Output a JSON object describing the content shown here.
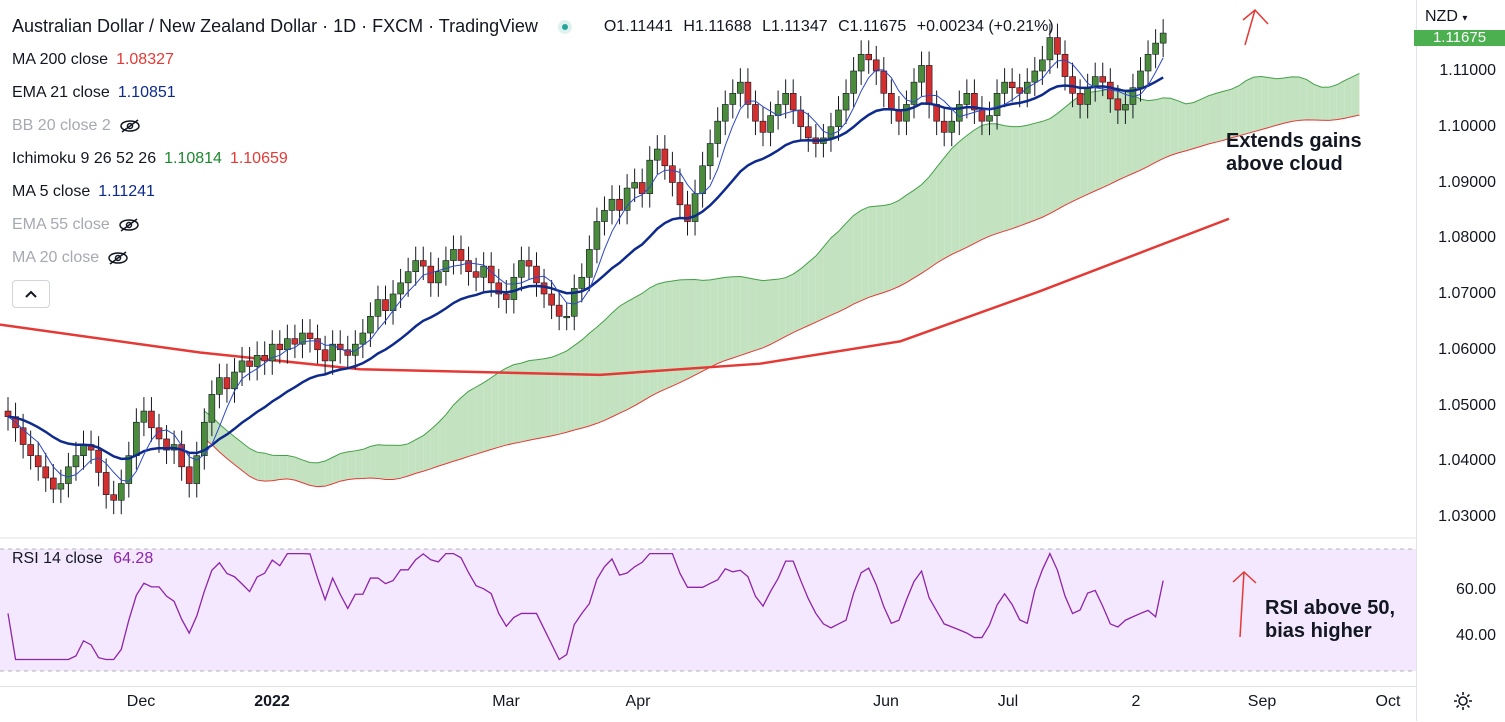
{
  "header": {
    "title": "Australian Dollar / New Zealand Dollar · 1D · FXCM · TradingView",
    "ohlc": {
      "open": "O1.11441",
      "high": "H1.11688",
      "low": "L1.11347",
      "close": "C1.11675",
      "change": "+0.00234 (+0.21%)"
    }
  },
  "indicators": [
    {
      "label": "MA 200 close",
      "value": "1.08327",
      "color": "#e53935",
      "hidden": false
    },
    {
      "label": "EMA 21 close",
      "value": "1.10851",
      "color": "#0d2a8c",
      "hidden": false
    },
    {
      "label": "BB 20 close 2",
      "value": "",
      "color": "#a6a9b1",
      "hidden": true
    },
    {
      "label": "Ichimoku 9 26 52 26",
      "value": "1.10814",
      "value2": "1.10659",
      "color": "#1b8a2e",
      "color2": "#e53935",
      "hidden": false
    },
    {
      "label": "MA 5 close",
      "value": "1.11241",
      "color": "#0d2a8c",
      "hidden": false
    },
    {
      "label": "EMA 55 close",
      "value": "",
      "color": "#a6a9b1",
      "hidden": true
    },
    {
      "label": "MA 20 close",
      "value": "",
      "color": "#a6a9b1",
      "hidden": true
    }
  ],
  "currency_label": "NZD",
  "price_tag": "1.11675",
  "rsi": {
    "label": "RSI 14 close",
    "value": "64.28",
    "color": "#8e24aa"
  },
  "annotations": {
    "price": [
      "Extends gains",
      "above cloud"
    ],
    "rsi": [
      "RSI above 50,",
      "bias higher"
    ]
  },
  "colors": {
    "up": "#4a8c3c",
    "down": "#d32f2f",
    "cloud_up": "#c3e3c0",
    "cloud_down": "#f8a9a4",
    "ma200": "#e53935",
    "ema21": "#0d2a8c",
    "ma5": "#2c48c9",
    "rsi_bg": "#f3e8fd",
    "rsi_line": "#8e24aa"
  },
  "chart_data": [
    {
      "type": "candlestick",
      "title": "Australian Dollar / New Zealand Dollar · 1D · FXCM · TradingView",
      "ylabel": "NZD",
      "ylim": [
        1.025,
        1.12
      ],
      "yticks": [
        "1.03000",
        "1.04000",
        "1.05000",
        "1.06000",
        "1.07000",
        "1.08000",
        "1.09000",
        "1.10000",
        "1.11000"
      ],
      "xticks": [
        "Dec",
        "2022",
        "Mar",
        "Apr",
        "Jun",
        "Jul",
        "2",
        "Sep",
        "Oct"
      ],
      "close": [
        1.048,
        1.046,
        1.043,
        1.041,
        1.039,
        1.037,
        1.035,
        1.036,
        1.039,
        1.041,
        1.043,
        1.042,
        1.038,
        1.034,
        1.033,
        1.036,
        1.041,
        1.047,
        1.049,
        1.046,
        1.044,
        1.042,
        1.043,
        1.039,
        1.036,
        1.041,
        1.047,
        1.052,
        1.055,
        1.053,
        1.056,
        1.058,
        1.057,
        1.059,
        1.058,
        1.061,
        1.06,
        1.062,
        1.061,
        1.063,
        1.062,
        1.06,
        1.058,
        1.061,
        1.06,
        1.059,
        1.061,
        1.063,
        1.066,
        1.069,
        1.067,
        1.07,
        1.072,
        1.074,
        1.076,
        1.075,
        1.072,
        1.074,
        1.076,
        1.078,
        1.076,
        1.074,
        1.073,
        1.075,
        1.072,
        1.07,
        1.069,
        1.073,
        1.076,
        1.075,
        1.072,
        1.07,
        1.068,
        1.066,
        1.066,
        1.071,
        1.073,
        1.078,
        1.083,
        1.085,
        1.087,
        1.085,
        1.089,
        1.09,
        1.088,
        1.094,
        1.096,
        1.093,
        1.09,
        1.086,
        1.083,
        1.088,
        1.093,
        1.097,
        1.101,
        1.104,
        1.106,
        1.108,
        1.104,
        1.101,
        1.099,
        1.102,
        1.104,
        1.106,
        1.103,
        1.1,
        1.098,
        1.097,
        1.098,
        1.1,
        1.103,
        1.106,
        1.11,
        1.113,
        1.112,
        1.11,
        1.106,
        1.103,
        1.101,
        1.104,
        1.108,
        1.111,
        1.104,
        1.101,
        1.099,
        1.101,
        1.104,
        1.106,
        1.103,
        1.101,
        1.102,
        1.106,
        1.108,
        1.107,
        1.106,
        1.108,
        1.11,
        1.112,
        1.116,
        1.113,
        1.109,
        1.106,
        1.104,
        1.107,
        1.109,
        1.108,
        1.105,
        1.103,
        1.104,
        1.107,
        1.11,
        1.113,
        1.115,
        1.1168
      ],
      "ma200": {
        "x_index": [
          0,
          40,
          80,
          100,
          130,
          160
        ],
        "y": [
          1.0645,
          1.0595,
          1.0555,
          1.0565,
          1.066,
          1.0835
        ]
      },
      "ema21_last": 1.10851,
      "ma5_last": 1.11241
    },
    {
      "type": "line",
      "title": "RSI 14 close",
      "ylim": [
        25,
        78
      ],
      "yticks": [
        "40.00",
        "60.00"
      ],
      "last": 64.28
    }
  ]
}
